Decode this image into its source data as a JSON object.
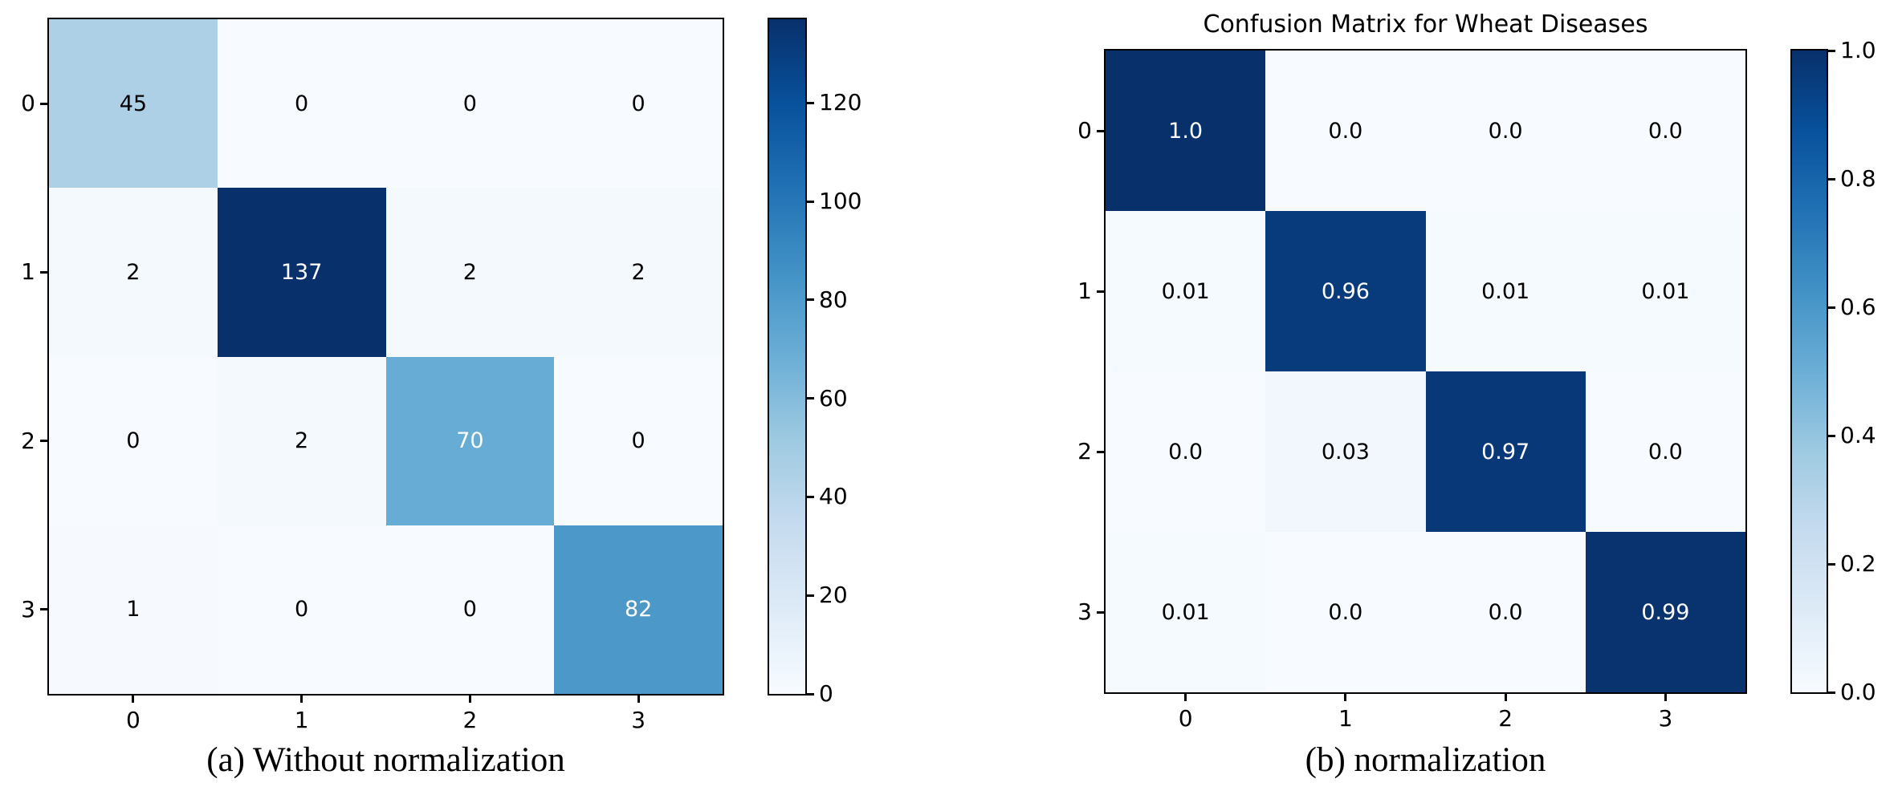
{
  "figure": {
    "background": "#ffffff"
  },
  "chart_data": [
    {
      "type": "heatmap",
      "panel": "a",
      "title": "",
      "caption": "(a) Without normalization",
      "x_ticklabels": [
        "0",
        "1",
        "2",
        "3"
      ],
      "y_ticklabels": [
        "0",
        "1",
        "2",
        "3"
      ],
      "cell_labels": [
        [
          "45",
          "0",
          "0",
          "0"
        ],
        [
          "2",
          "137",
          "2",
          "2"
        ],
        [
          "0",
          "2",
          "70",
          "0"
        ],
        [
          "1",
          "0",
          "0",
          "82"
        ]
      ],
      "values": [
        [
          45,
          0,
          0,
          0
        ],
        [
          2,
          137,
          2,
          2
        ],
        [
          0,
          2,
          70,
          0
        ],
        [
          1,
          0,
          0,
          82
        ]
      ],
      "vmin": 0,
      "vmax": 137,
      "colormap": "Blues",
      "grid": false,
      "colorbar": {
        "position": "right",
        "tick_labels": [
          "0",
          "20",
          "40",
          "60",
          "80",
          "100",
          "120"
        ],
        "tick_values": [
          0,
          20,
          40,
          60,
          80,
          100,
          120
        ],
        "range": [
          0,
          137
        ]
      }
    },
    {
      "type": "heatmap",
      "panel": "b",
      "title": "Confusion Matrix for Wheat Diseases",
      "caption": "(b) normalization",
      "x_ticklabels": [
        "0",
        "1",
        "2",
        "3"
      ],
      "y_ticklabels": [
        "0",
        "1",
        "2",
        "3"
      ],
      "cell_labels": [
        [
          "1.0",
          "0.0",
          "0.0",
          "0.0"
        ],
        [
          "0.01",
          "0.96",
          "0.01",
          "0.01"
        ],
        [
          "0.0",
          "0.03",
          "0.97",
          "0.0"
        ],
        [
          "0.01",
          "0.0",
          "0.0",
          "0.99"
        ]
      ],
      "values": [
        [
          1.0,
          0.0,
          0.0,
          0.0
        ],
        [
          0.01,
          0.96,
          0.01,
          0.01
        ],
        [
          0.0,
          0.03,
          0.97,
          0.0
        ],
        [
          0.01,
          0.0,
          0.0,
          0.99
        ]
      ],
      "vmin": 0,
      "vmax": 1.0,
      "colormap": "Blues",
      "grid": false,
      "colorbar": {
        "position": "right",
        "tick_labels": [
          "0.0",
          "0.2",
          "0.4",
          "0.6",
          "0.8",
          "1.0"
        ],
        "tick_values": [
          0,
          0.2,
          0.4,
          0.6,
          0.8,
          1.0
        ],
        "range": [
          0,
          1.0
        ]
      }
    }
  ],
  "colors": {
    "colormap_stops": [
      "#f7fbff",
      "#deebf7",
      "#c6dbef",
      "#9ecae1",
      "#6baed6",
      "#4292c6",
      "#2171b5",
      "#08519c",
      "#08306b"
    ],
    "cell_text_dark": "#000000",
    "cell_text_light": "#ffffff",
    "axis": "#000000",
    "background": "#ffffff"
  }
}
